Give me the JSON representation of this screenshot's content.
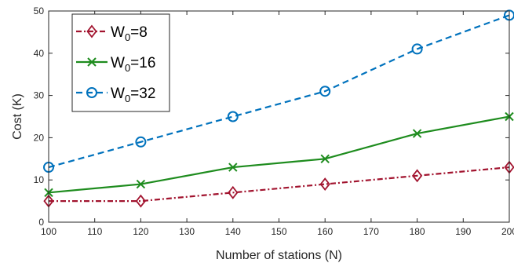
{
  "chart_data": {
    "type": "line",
    "xlabel": "Number of stations (N)",
    "ylabel": "Cost (K)",
    "xlim": [
      100,
      200
    ],
    "ylim": [
      0,
      50
    ],
    "xticks": [
      100,
      110,
      120,
      130,
      140,
      150,
      160,
      170,
      180,
      190,
      200
    ],
    "yticks": [
      0,
      10,
      20,
      30,
      40,
      50
    ],
    "x": [
      100,
      120,
      140,
      160,
      180,
      200
    ],
    "grid": false,
    "legend_position": "top-left",
    "series": [
      {
        "name": "W0=8",
        "legend_main": "W",
        "legend_sub": "0",
        "legend_rest": "=8",
        "values": [
          5,
          5,
          7,
          9,
          11,
          13
        ],
        "color": "#A2142F",
        "line_style": "dash-dot",
        "marker": "diamond"
      },
      {
        "name": "W0=16",
        "legend_main": "W",
        "legend_sub": "0",
        "legend_rest": "=16",
        "values": [
          7,
          9,
          13,
          15,
          21,
          25
        ],
        "color": "#1E8C1E",
        "line_style": "solid",
        "marker": "x"
      },
      {
        "name": "W0=32",
        "legend_main": "W",
        "legend_sub": "0",
        "legend_rest": "=32",
        "values": [
          13,
          19,
          25,
          31,
          41,
          49
        ],
        "color": "#0072BD",
        "line_style": "dashed",
        "marker": "circle"
      }
    ]
  }
}
